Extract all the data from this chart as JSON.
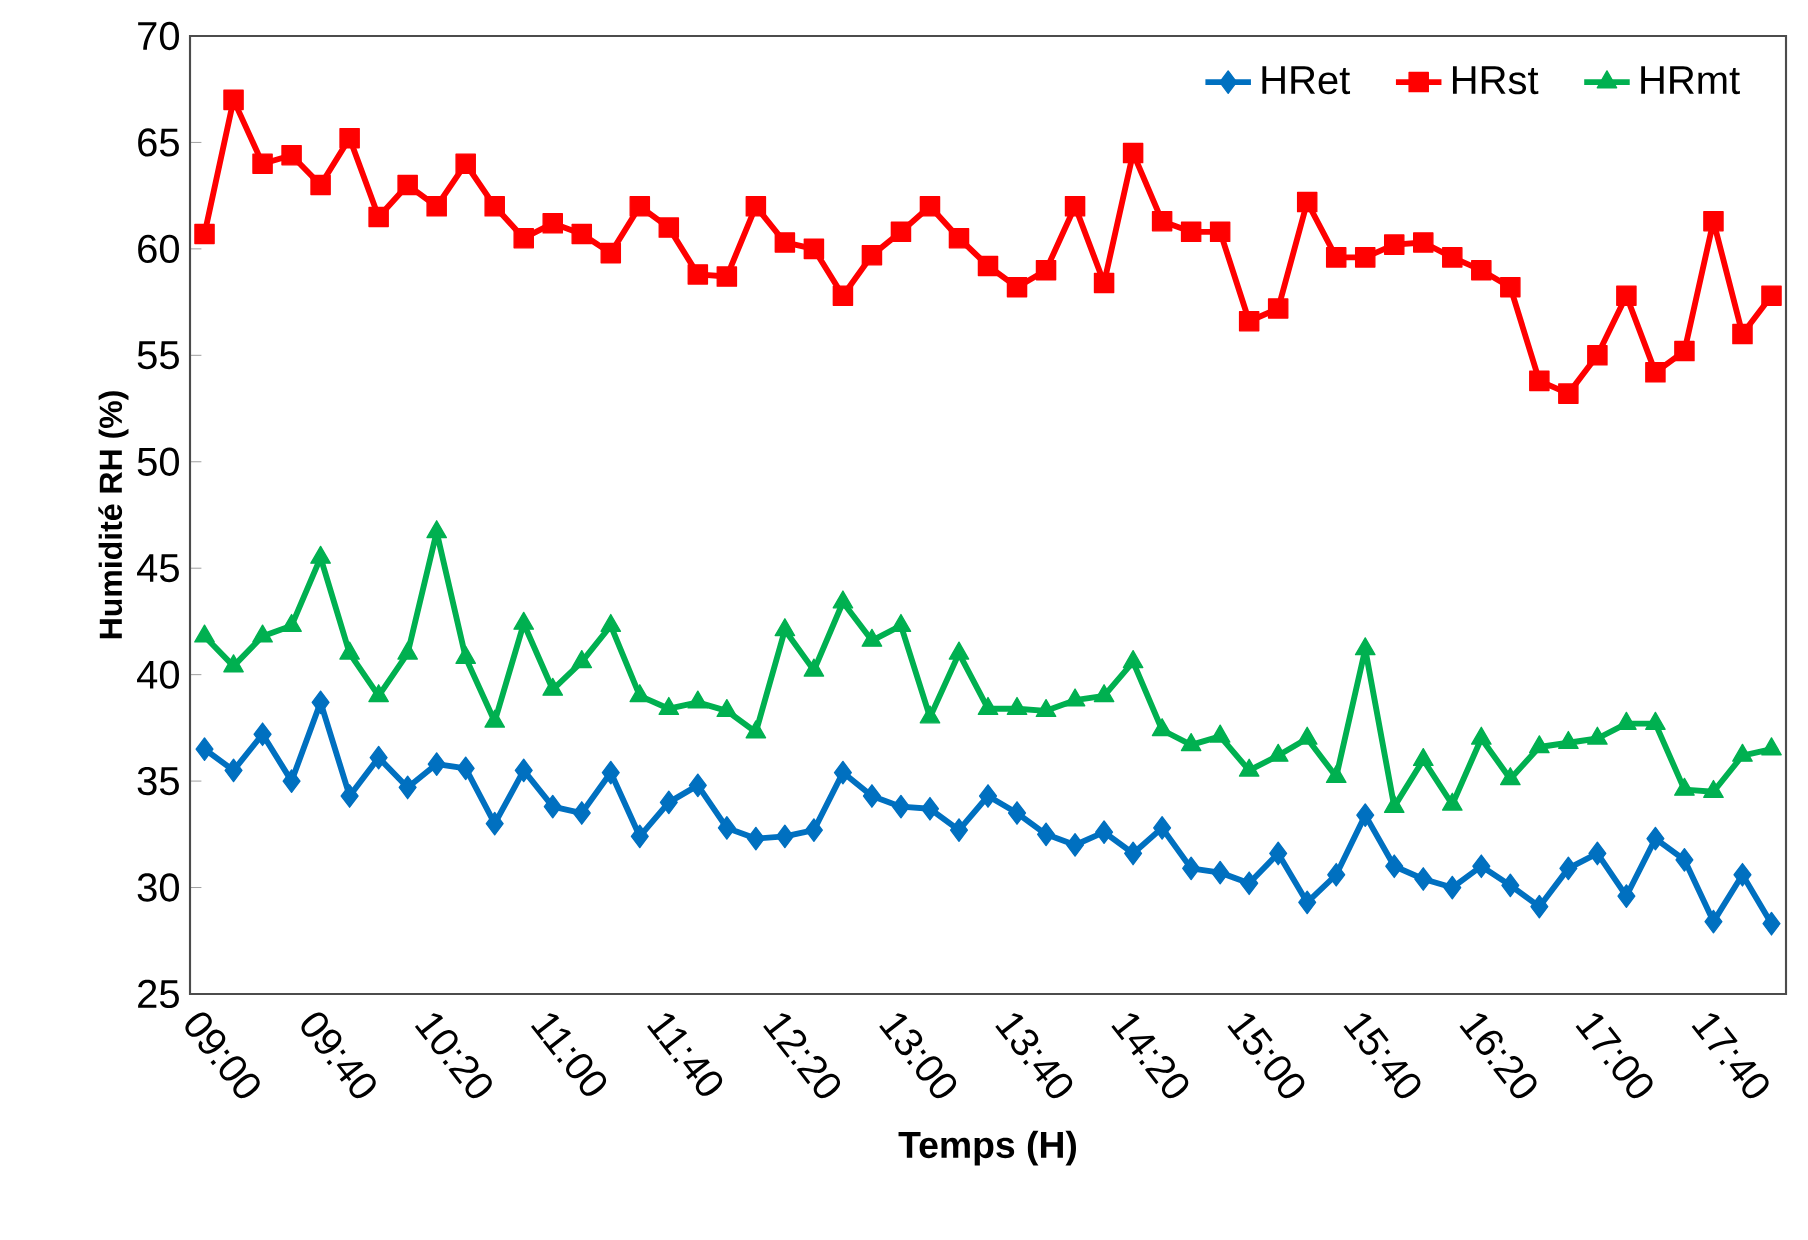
{
  "chart_data": {
    "type": "line",
    "xlabel": "Temps (H)",
    "ylabel": "Humidité RH (%)",
    "categories": [
      "09:00",
      null,
      null,
      null,
      "09:40",
      null,
      null,
      null,
      "10:20",
      null,
      null,
      null,
      "11:00",
      null,
      null,
      null,
      "11:40",
      null,
      null,
      null,
      "12:20",
      null,
      null,
      null,
      "13:00",
      null,
      null,
      null,
      "13:40",
      null,
      null,
      null,
      "14:20",
      null,
      null,
      null,
      "15:00",
      null,
      null,
      null,
      "15:40",
      null,
      null,
      null,
      "16:20",
      null,
      null,
      null,
      "17:00",
      null,
      null,
      null,
      "17:40",
      null,
      null
    ],
    "series": [
      {
        "name": "HRet",
        "color": "#0070c0",
        "marker": "diamond",
        "values": [
          36.5,
          35.5,
          37.2,
          35,
          38.7,
          34.3,
          36.1,
          34.7,
          35.8,
          35.6,
          33,
          35.5,
          33.8,
          33.5,
          35.4,
          32.4,
          34,
          34.8,
          32.8,
          32.3,
          32.4,
          32.7,
          35.4,
          34.3,
          33.8,
          33.7,
          32.7,
          34.3,
          33.5,
          32.5,
          32,
          32.6,
          31.6,
          32.8,
          30.9,
          30.7,
          30.2,
          31.6,
          29.3,
          30.6,
          33.4,
          31,
          30.4,
          30,
          31,
          30.1,
          29.1,
          30.9,
          31.6,
          29.6,
          32.3,
          31.3,
          28.4,
          30.6,
          28.3
        ]
      },
      {
        "name": "HRst",
        "color": "#ff0000",
        "marker": "square",
        "values": [
          60.7,
          67,
          64,
          64.4,
          63,
          65.2,
          61.5,
          63,
          62,
          64,
          62,
          60.5,
          61.2,
          60.7,
          59.8,
          62,
          61,
          58.8,
          58.7,
          62,
          60.3,
          60,
          57.8,
          59.7,
          60.8,
          62,
          60.5,
          59.2,
          58.2,
          59,
          62,
          58.4,
          64.5,
          61.3,
          60.8,
          60.8,
          56.6,
          57.2,
          62.2,
          59.6,
          59.6,
          60.2,
          60.3,
          59.6,
          59,
          58.2,
          53.8,
          53.2,
          55,
          57.8,
          54.2,
          55.2,
          61.3,
          56,
          57.8
        ]
      },
      {
        "name": "HRmt",
        "color": "#00b050",
        "marker": "triangle",
        "values": [
          41.8,
          40.4,
          41.8,
          42.3,
          45.5,
          41,
          39,
          41,
          46.7,
          40.8,
          37.8,
          42.4,
          39.3,
          40.6,
          42.3,
          39,
          38.4,
          38.7,
          38.3,
          37.3,
          42.1,
          40.2,
          43.4,
          41.6,
          42.3,
          38,
          41,
          38.4,
          38.4,
          38.3,
          38.8,
          39,
          40.6,
          37.4,
          36.7,
          37.1,
          35.5,
          36.2,
          37,
          35.2,
          41.2,
          33.8,
          36,
          33.9,
          37,
          35.1,
          36.6,
          36.8,
          37,
          37.7,
          37.7,
          34.6,
          34.5,
          36.2,
          36.5
        ]
      }
    ],
    "ylim": [
      25,
      70
    ],
    "yticks": [
      25,
      30,
      35,
      40,
      45,
      50,
      55,
      60,
      65,
      70
    ],
    "grid": false,
    "legend": "top right"
  }
}
